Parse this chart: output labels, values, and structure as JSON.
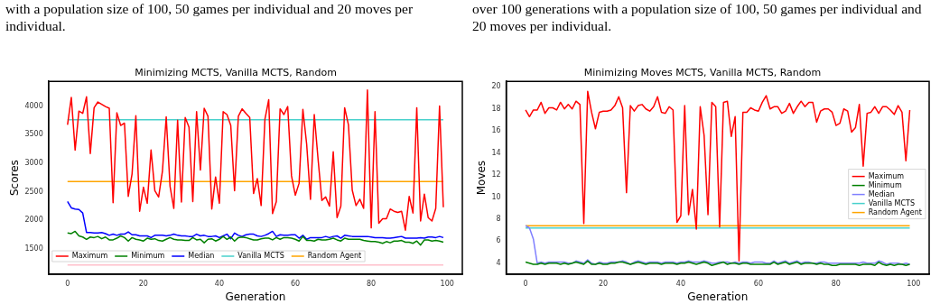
{
  "chart_data": [
    {
      "type": "line",
      "title": "Minimizing MCTS, Vanilla MCTS, Random",
      "xlabel": "Generation",
      "ylabel": "Scores",
      "annotations": [
        "with a population size of 100, 50 games per individual and 20 moves per individual."
      ],
      "x": [
        0,
        1,
        2,
        3,
        4,
        5,
        6,
        7,
        8,
        9,
        10,
        11,
        12,
        13,
        14,
        15,
        16,
        17,
        18,
        19,
        20,
        21,
        22,
        23,
        24,
        25,
        26,
        27,
        28,
        29,
        30,
        31,
        32,
        33,
        34,
        35,
        36,
        37,
        38,
        39,
        40,
        41,
        42,
        43,
        44,
        45,
        46,
        47,
        48,
        49,
        50,
        51,
        52,
        53,
        54,
        55,
        56,
        57,
        58,
        59,
        60,
        61,
        62,
        63,
        64,
        65,
        66,
        67,
        68,
        69,
        70,
        71,
        72,
        73,
        74,
        75,
        76,
        77,
        78,
        79,
        80,
        81,
        82,
        83,
        84,
        85,
        86,
        87,
        88,
        89,
        90,
        91,
        92,
        93,
        94,
        95,
        96,
        97,
        98,
        99
      ],
      "xlim": [
        -5,
        104
      ],
      "xticks": [
        0,
        20,
        40,
        60,
        80,
        100
      ],
      "ylim": [
        1060,
        4430
      ],
      "yticks": [
        1500,
        2000,
        2500,
        3000,
        3500,
        4000
      ],
      "legend": "bottom left",
      "series": [
        {
          "name": "Maximum",
          "color": "#ff0000",
          "values": [
            3670,
            4150,
            3230,
            3910,
            3870,
            4160,
            3170,
            3970,
            4070,
            4030,
            3990,
            3960,
            2310,
            3880,
            3660,
            3700,
            2420,
            2810,
            3830,
            2160,
            2580,
            2300,
            3230,
            2520,
            2410,
            2860,
            3810,
            2600,
            2210,
            3750,
            2320,
            3800,
            3630,
            2330,
            3900,
            2880,
            3960,
            3820,
            2200,
            2760,
            2300,
            3900,
            3850,
            3660,
            2520,
            3820,
            3950,
            3870,
            3800,
            2470,
            2730,
            2260,
            3770,
            4110,
            2120,
            2330,
            3950,
            3850,
            3990,
            2780,
            2440,
            2650,
            3940,
            3330,
            2370,
            3850,
            3070,
            2350,
            2410,
            2250,
            3200,
            2050,
            2250,
            3970,
            3670,
            2530,
            2260,
            2370,
            2210,
            4280,
            1870,
            3900,
            1950,
            2030,
            2030,
            2200,
            2160,
            2140,
            2160,
            1830,
            2420,
            2130,
            3970,
            1990,
            2460,
            2050,
            1990,
            2210,
            4000,
            2230
          ]
        },
        {
          "name": "Minimum",
          "color": "#008000",
          "values": [
            1780,
            1770,
            1810,
            1730,
            1710,
            1670,
            1710,
            1700,
            1720,
            1680,
            1710,
            1660,
            1660,
            1690,
            1730,
            1700,
            1640,
            1700,
            1670,
            1660,
            1640,
            1690,
            1670,
            1680,
            1650,
            1640,
            1670,
            1700,
            1670,
            1660,
            1660,
            1650,
            1650,
            1700,
            1660,
            1670,
            1610,
            1670,
            1680,
            1640,
            1670,
            1720,
            1670,
            1710,
            1640,
            1700,
            1710,
            1700,
            1680,
            1660,
            1660,
            1680,
            1690,
            1690,
            1660,
            1700,
            1670,
            1700,
            1700,
            1690,
            1670,
            1640,
            1720,
            1650,
            1650,
            1640,
            1670,
            1660,
            1660,
            1670,
            1690,
            1660,
            1640,
            1690,
            1670,
            1670,
            1670,
            1670,
            1650,
            1640,
            1630,
            1630,
            1620,
            1600,
            1630,
            1610,
            1640,
            1640,
            1650,
            1620,
            1620,
            1600,
            1640,
            1570,
            1660,
            1660,
            1640,
            1650,
            1640,
            1620
          ]
        },
        {
          "name": "Median",
          "color": "#0000ff",
          "values": [
            2330,
            2220,
            2200,
            2190,
            2130,
            1790,
            1790,
            1780,
            1780,
            1790,
            1770,
            1740,
            1760,
            1740,
            1760,
            1760,
            1800,
            1750,
            1750,
            1730,
            1730,
            1730,
            1700,
            1740,
            1740,
            1740,
            1730,
            1740,
            1760,
            1740,
            1730,
            1730,
            1720,
            1720,
            1760,
            1730,
            1740,
            1720,
            1720,
            1730,
            1700,
            1730,
            1760,
            1680,
            1780,
            1740,
            1720,
            1750,
            1760,
            1760,
            1730,
            1720,
            1740,
            1770,
            1810,
            1720,
            1750,
            1740,
            1740,
            1750,
            1750,
            1690,
            1740,
            1670,
            1700,
            1700,
            1700,
            1700,
            1720,
            1700,
            1720,
            1730,
            1690,
            1740,
            1730,
            1720,
            1720,
            1720,
            1720,
            1720,
            1710,
            1700,
            1700,
            1700,
            1690,
            1690,
            1700,
            1710,
            1720,
            1690,
            1690,
            1690,
            1690,
            1700,
            1690,
            1710,
            1710,
            1700,
            1720,
            1700
          ]
        },
        {
          "name": "Vanilla MCTS",
          "color": "#48d1cc",
          "values": [
            3760,
            3760,
            3760,
            3760,
            3760,
            3760,
            3760,
            3760,
            3760,
            3760,
            3760,
            3760,
            3760,
            3760,
            3760,
            3760,
            3760,
            3760,
            3760,
            3760,
            3760,
            3760,
            3760,
            3760,
            3760,
            3760,
            3760,
            3760,
            3760,
            3760,
            3760,
            3760,
            3760,
            3760,
            3760,
            3760,
            3760,
            3760,
            3760,
            3760,
            3760,
            3760,
            3760,
            3760,
            3760,
            3760,
            3760,
            3760,
            3760,
            3760,
            3760,
            3760,
            3760,
            3760,
            3760,
            3760,
            3760,
            3760,
            3760,
            3760,
            3760,
            3760,
            3760,
            3760,
            3760,
            3760,
            3760,
            3760,
            3760,
            3760,
            3760,
            3760,
            3760,
            3760,
            3760,
            3760,
            3760,
            3760,
            3760,
            3760,
            3760,
            3760,
            3760,
            3760,
            3760,
            3760,
            3760,
            3760,
            3760,
            3760,
            3760,
            3760,
            3760,
            3760,
            3760,
            3760,
            3760,
            3760,
            3760,
            3760
          ]
        },
        {
          "name": "Random Agent",
          "color": "#ffa500",
          "values": [
            2680,
            2680,
            2680,
            2680,
            2680,
            2680,
            2680,
            2680,
            2680,
            2680,
            2680,
            2680,
            2680,
            2680,
            2680,
            2680,
            2680,
            2680,
            2680,
            2680,
            2680,
            2680,
            2680,
            2680,
            2680,
            2680,
            2680,
            2680,
            2680,
            2680,
            2680,
            2680,
            2680,
            2680,
            2680,
            2680,
            2680,
            2680,
            2680,
            2680,
            2680,
            2680,
            2680,
            2680,
            2680,
            2680,
            2680,
            2680,
            2680,
            2680,
            2680,
            2680,
            2680,
            2680,
            2680,
            2680,
            2680,
            2680,
            2680,
            2680,
            2680,
            2680,
            2680,
            2680,
            2680,
            2680,
            2680,
            2680,
            2680,
            2680,
            2680,
            2680,
            2680,
            2680,
            2680,
            2680,
            2680,
            2680,
            2680,
            2680,
            2680,
            2680,
            2680,
            2680,
            2680,
            2680,
            2680,
            2680,
            2680,
            2680,
            2680,
            2680,
            2680,
            2680,
            2680,
            2680,
            2680,
            2680,
            2680,
            2680
          ]
        },
        {
          "color": "#ffc0cb",
          "values": [
            1220,
            1220,
            1220,
            1220,
            1220,
            1220,
            1220,
            1220,
            1220,
            1220,
            1220,
            1220,
            1220,
            1220,
            1220,
            1220,
            1220,
            1220,
            1220,
            1220,
            1220,
            1220,
            1220,
            1220,
            1220,
            1220,
            1220,
            1220,
            1220,
            1220,
            1220,
            1220,
            1220,
            1220,
            1220,
            1220,
            1220,
            1220,
            1220,
            1220,
            1220,
            1220,
            1220,
            1220,
            1220,
            1220,
            1220,
            1220,
            1220,
            1220,
            1220,
            1220,
            1220,
            1220,
            1220,
            1220,
            1220,
            1220,
            1220,
            1220,
            1220,
            1220,
            1220,
            1220,
            1220,
            1220,
            1220,
            1220,
            1220,
            1220,
            1220,
            1220,
            1220,
            1220,
            1220,
            1220,
            1220,
            1220,
            1220,
            1220,
            1220,
            1220,
            1220,
            1220,
            1220,
            1220,
            1220,
            1220,
            1220,
            1220,
            1220,
            1220,
            1220,
            1220,
            1220,
            1220,
            1220,
            1220,
            1220,
            1220
          ]
        }
      ]
    },
    {
      "type": "line",
      "title": "Minimizing Moves MCTS, Vanilla MCTS, Random",
      "xlabel": "Generation",
      "ylabel": "Moves",
      "annotations": [
        "over 100 generations with a population size of 100, 50 games per individual and 20 moves per individual."
      ],
      "x": [
        0,
        1,
        2,
        3,
        4,
        5,
        6,
        7,
        8,
        9,
        10,
        11,
        12,
        13,
        14,
        15,
        16,
        17,
        18,
        19,
        20,
        21,
        22,
        23,
        24,
        25,
        26,
        27,
        28,
        29,
        30,
        31,
        32,
        33,
        34,
        35,
        36,
        37,
        38,
        39,
        40,
        41,
        42,
        43,
        44,
        45,
        46,
        47,
        48,
        49,
        50,
        51,
        52,
        53,
        54,
        55,
        56,
        57,
        58,
        59,
        60,
        61,
        62,
        63,
        64,
        65,
        66,
        67,
        68,
        69,
        70,
        71,
        72,
        73,
        74,
        75,
        76,
        77,
        78,
        79,
        80,
        81,
        82,
        83,
        84,
        85,
        86,
        87,
        88,
        89,
        90,
        91,
        92,
        93,
        94,
        95,
        96,
        97,
        98,
        99
      ],
      "xlim": [
        -5,
        104
      ],
      "xticks": [
        0,
        20,
        40,
        60,
        80,
        100
      ],
      "ylim": [
        3,
        20.5
      ],
      "yticks": [
        4,
        6,
        8,
        10,
        12,
        14,
        16,
        18,
        20
      ],
      "legend": "right",
      "series": [
        {
          "name": "Maximum",
          "color": "#ff0000",
          "values": [
            17.9,
            17.3,
            17.9,
            17.9,
            18.6,
            17.6,
            18.1,
            18.1,
            17.9,
            18.6,
            18.0,
            18.4,
            18.0,
            18.7,
            18.4,
            7.6,
            19.6,
            17.7,
            16.2,
            17.7,
            17.8,
            17.8,
            17.9,
            18.3,
            19.1,
            18.1,
            10.4,
            18.3,
            17.8,
            18.3,
            18.4,
            18.0,
            17.8,
            18.2,
            19.1,
            17.7,
            17.6,
            18.2,
            17.9,
            7.7,
            8.3,
            18.3,
            8.4,
            10.7,
            7.1,
            18.2,
            15.6,
            8.4,
            18.6,
            18.2,
            7.3,
            18.6,
            18.7,
            15.5,
            17.3,
            4.2,
            17.7,
            17.7,
            18.1,
            17.9,
            17.8,
            18.6,
            19.2,
            18.0,
            18.2,
            18.2,
            17.6,
            17.8,
            18.5,
            17.6,
            18.2,
            18.7,
            18.2,
            18.6,
            18.6,
            16.8,
            17.8,
            18.0,
            18.0,
            17.7,
            16.5,
            16.7,
            18.0,
            17.8,
            15.9,
            16.3,
            18.4,
            12.8,
            17.6,
            17.7,
            18.2,
            17.6,
            18.2,
            18.2,
            17.9,
            17.5,
            18.3,
            17.7,
            13.3,
            17.9
          ]
        },
        {
          "name": "Minimum",
          "color": "#008000",
          "values": [
            4.1,
            4.0,
            3.9,
            3.9,
            4.0,
            3.9,
            4.0,
            4.0,
            4.0,
            3.9,
            4.0,
            3.9,
            4.0,
            4.1,
            4.0,
            3.9,
            4.2,
            3.9,
            3.9,
            4.0,
            3.9,
            3.9,
            4.0,
            4.0,
            4.1,
            4.1,
            4.0,
            3.9,
            4.0,
            4.1,
            4.0,
            3.9,
            4.0,
            4.0,
            4.0,
            3.9,
            4.0,
            4.0,
            4.0,
            3.9,
            4.0,
            4.0,
            4.1,
            4.0,
            3.9,
            4.0,
            4.1,
            4.0,
            3.8,
            3.9,
            4.0,
            4.1,
            3.9,
            4.0,
            4.0,
            3.9,
            4.0,
            4.0,
            3.9,
            3.9,
            3.9,
            3.9,
            3.9,
            3.9,
            4.1,
            3.9,
            4.0,
            4.1,
            3.9,
            4.0,
            4.1,
            3.9,
            4.0,
            4.0,
            4.0,
            3.9,
            4.0,
            3.9,
            3.9,
            3.8,
            3.8,
            3.9,
            3.9,
            3.9,
            3.9,
            3.9,
            3.8,
            3.9,
            3.9,
            3.9,
            3.8,
            4.1,
            3.9,
            3.8,
            3.9,
            3.8,
            3.9,
            3.9,
            3.8,
            3.9
          ]
        },
        {
          "name": "Median",
          "color": "#8080ff",
          "values": [
            7.4,
            7.2,
            6.2,
            4.0,
            4.1,
            4.0,
            4.1,
            4.1,
            4.1,
            4.1,
            4.1,
            4.0,
            4.0,
            4.2,
            4.1,
            4.0,
            4.3,
            4.0,
            3.9,
            4.1,
            4.0,
            4.0,
            4.1,
            4.1,
            4.1,
            4.2,
            4.1,
            3.9,
            4.1,
            4.2,
            4.1,
            4.0,
            4.1,
            4.1,
            4.1,
            4.0,
            4.1,
            4.1,
            4.1,
            4.0,
            4.1,
            4.1,
            4.2,
            4.1,
            4.1,
            4.1,
            4.2,
            4.1,
            4.0,
            4.0,
            4.1,
            4.1,
            4.1,
            4.0,
            4.1,
            4.0,
            4.1,
            4.1,
            4.0,
            4.1,
            4.1,
            4.1,
            4.0,
            4.0,
            4.2,
            4.0,
            4.1,
            4.2,
            4.0,
            4.1,
            4.2,
            4.0,
            4.1,
            4.1,
            4.0,
            4.0,
            4.1,
            4.1,
            4.0,
            4.0,
            4.0,
            4.0,
            4.0,
            4.0,
            4.0,
            4.0,
            4.0,
            4.1,
            4.0,
            4.0,
            4.0,
            4.2,
            4.1,
            3.9,
            4.0,
            4.0,
            4.0,
            3.9,
            4.0,
            3.9
          ]
        },
        {
          "name": "Vanilla MCTS",
          "color": "#48d1cc",
          "values": [
            7.2,
            7.2,
            7.2,
            7.2,
            7.2,
            7.2,
            7.2,
            7.2,
            7.2,
            7.2,
            7.2,
            7.2,
            7.2,
            7.2,
            7.2,
            7.2,
            7.2,
            7.2,
            7.2,
            7.2,
            7.2,
            7.2,
            7.2,
            7.2,
            7.2,
            7.2,
            7.2,
            7.2,
            7.2,
            7.2,
            7.2,
            7.2,
            7.2,
            7.2,
            7.2,
            7.2,
            7.2,
            7.2,
            7.2,
            7.2,
            7.2,
            7.2,
            7.2,
            7.2,
            7.2,
            7.2,
            7.2,
            7.2,
            7.2,
            7.2,
            7.2,
            7.2,
            7.2,
            7.2,
            7.2,
            7.2,
            7.2,
            7.2,
            7.2,
            7.2,
            7.2,
            7.2,
            7.2,
            7.2,
            7.2,
            7.2,
            7.2,
            7.2,
            7.2,
            7.2,
            7.2,
            7.2,
            7.2,
            7.2,
            7.2,
            7.2,
            7.2,
            7.2,
            7.2,
            7.2,
            7.2,
            7.2,
            7.2,
            7.2,
            7.2,
            7.2,
            7.2,
            7.2,
            7.2,
            7.2,
            7.2,
            7.2,
            7.2,
            7.2,
            7.2,
            7.2,
            7.2,
            7.2,
            7.2,
            7.2
          ]
        },
        {
          "name": "Random Agent",
          "color": "#ffa500",
          "values": [
            7.4,
            7.4,
            7.4,
            7.4,
            7.4,
            7.4,
            7.4,
            7.4,
            7.4,
            7.4,
            7.4,
            7.4,
            7.4,
            7.4,
            7.4,
            7.4,
            7.4,
            7.4,
            7.4,
            7.4,
            7.4,
            7.4,
            7.4,
            7.4,
            7.4,
            7.4,
            7.4,
            7.4,
            7.4,
            7.4,
            7.4,
            7.4,
            7.4,
            7.4,
            7.4,
            7.4,
            7.4,
            7.4,
            7.4,
            7.4,
            7.4,
            7.4,
            7.4,
            7.4,
            7.4,
            7.4,
            7.4,
            7.4,
            7.4,
            7.4,
            7.4,
            7.4,
            7.4,
            7.4,
            7.4,
            7.4,
            7.4,
            7.4,
            7.4,
            7.4,
            7.4,
            7.4,
            7.4,
            7.4,
            7.4,
            7.4,
            7.4,
            7.4,
            7.4,
            7.4,
            7.4,
            7.4,
            7.4,
            7.4,
            7.4,
            7.4,
            7.4,
            7.4,
            7.4,
            7.4,
            7.4,
            7.4,
            7.4,
            7.4,
            7.4,
            7.4,
            7.4,
            7.4,
            7.4,
            7.4,
            7.4,
            7.4,
            7.4,
            7.4,
            7.4,
            7.4,
            7.4,
            7.4,
            7.4,
            7.4
          ]
        }
      ]
    }
  ]
}
